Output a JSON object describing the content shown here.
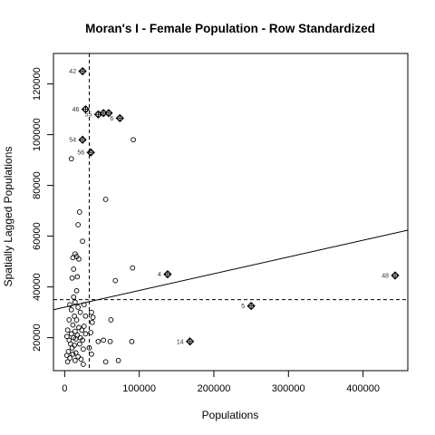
{
  "chart_data": {
    "type": "scatter",
    "title": "Moran's I - Female Population - Row Standardized",
    "xlabel": "Populations",
    "ylabel": "Spatially Lagged Populations",
    "xlim": [
      -15000,
      460000
    ],
    "ylim": [
      7000,
      132000
    ],
    "xticks": [
      0,
      100000,
      200000,
      300000,
      400000
    ],
    "yticks": [
      20000,
      40000,
      60000,
      80000,
      100000,
      120000
    ],
    "mean_x": 33000,
    "mean_y": 35000,
    "regression": {
      "intercept": 32000,
      "slope": 0.066
    },
    "influential_points": [
      {
        "x": 24000,
        "y": 125000,
        "label": "42"
      },
      {
        "x": 28000,
        "y": 110000,
        "label": "46"
      },
      {
        "x": 45000,
        "y": 108000,
        "label": "55"
      },
      {
        "x": 52000,
        "y": 108500,
        "label": ""
      },
      {
        "x": 59000,
        "y": 108500,
        "label": ""
      },
      {
        "x": 74000,
        "y": 106500,
        "label": "6"
      },
      {
        "x": 24000,
        "y": 98000,
        "label": "54"
      },
      {
        "x": 35000,
        "y": 93000,
        "label": "56"
      },
      {
        "x": 138000,
        "y": 45000,
        "label": "4"
      },
      {
        "x": 250000,
        "y": 32500,
        "label": "5"
      },
      {
        "x": 168000,
        "y": 18500,
        "label": "14"
      },
      {
        "x": 443000,
        "y": 44500,
        "label": "48"
      }
    ],
    "points": [
      {
        "x": 9000,
        "y": 90500
      },
      {
        "x": 92000,
        "y": 98000
      },
      {
        "x": 55000,
        "y": 74500
      },
      {
        "x": 20000,
        "y": 69500
      },
      {
        "x": 18000,
        "y": 64500
      },
      {
        "x": 24000,
        "y": 58000
      },
      {
        "x": 14000,
        "y": 53000
      },
      {
        "x": 16000,
        "y": 52000
      },
      {
        "x": 19000,
        "y": 51000
      },
      {
        "x": 11000,
        "y": 51500
      },
      {
        "x": 12000,
        "y": 47000
      },
      {
        "x": 91000,
        "y": 47500
      },
      {
        "x": 10000,
        "y": 43500
      },
      {
        "x": 17000,
        "y": 44000
      },
      {
        "x": 68000,
        "y": 42500
      },
      {
        "x": 16000,
        "y": 38500
      },
      {
        "x": 12000,
        "y": 36000
      },
      {
        "x": 7000,
        "y": 33000
      },
      {
        "x": 14000,
        "y": 34000
      },
      {
        "x": 26000,
        "y": 33000
      },
      {
        "x": 9000,
        "y": 31000
      },
      {
        "x": 18000,
        "y": 32000
      },
      {
        "x": 21000,
        "y": 30000
      },
      {
        "x": 36000,
        "y": 30000
      },
      {
        "x": 38000,
        "y": 28000
      },
      {
        "x": 13000,
        "y": 28500
      },
      {
        "x": 28000,
        "y": 28500
      },
      {
        "x": 6000,
        "y": 27000
      },
      {
        "x": 16000,
        "y": 27000
      },
      {
        "x": 37000,
        "y": 26000
      },
      {
        "x": 62000,
        "y": 27000
      },
      {
        "x": 11000,
        "y": 25000
      },
      {
        "x": 19000,
        "y": 24000
      },
      {
        "x": 26000,
        "y": 24500
      },
      {
        "x": 4000,
        "y": 23000
      },
      {
        "x": 14000,
        "y": 22500
      },
      {
        "x": 23000,
        "y": 23000
      },
      {
        "x": 35000,
        "y": 22000
      },
      {
        "x": 9000,
        "y": 21500
      },
      {
        "x": 17000,
        "y": 21000
      },
      {
        "x": 28000,
        "y": 21500
      },
      {
        "x": 3000,
        "y": 20500
      },
      {
        "x": 12000,
        "y": 20000
      },
      {
        "x": 21000,
        "y": 20000
      },
      {
        "x": 6000,
        "y": 19000
      },
      {
        "x": 15000,
        "y": 19500
      },
      {
        "x": 24000,
        "y": 19000
      },
      {
        "x": 45000,
        "y": 18500
      },
      {
        "x": 52000,
        "y": 19000
      },
      {
        "x": 61000,
        "y": 18500
      },
      {
        "x": 90000,
        "y": 18500
      },
      {
        "x": 8000,
        "y": 17500
      },
      {
        "x": 13000,
        "y": 17000
      },
      {
        "x": 20000,
        "y": 17500
      },
      {
        "x": 10000,
        "y": 16000
      },
      {
        "x": 25000,
        "y": 15500
      },
      {
        "x": 33000,
        "y": 16000
      },
      {
        "x": 5000,
        "y": 14500
      },
      {
        "x": 15000,
        "y": 14000
      },
      {
        "x": 36000,
        "y": 13500
      },
      {
        "x": 3000,
        "y": 13000
      },
      {
        "x": 11000,
        "y": 13500
      },
      {
        "x": 18000,
        "y": 12500
      },
      {
        "x": 7000,
        "y": 12000
      },
      {
        "x": 22000,
        "y": 11500
      },
      {
        "x": 14000,
        "y": 11000
      },
      {
        "x": 4000,
        "y": 10500
      },
      {
        "x": 55000,
        "y": 10500
      },
      {
        "x": 72000,
        "y": 11000
      },
      {
        "x": 25000,
        "y": 9500
      }
    ]
  }
}
